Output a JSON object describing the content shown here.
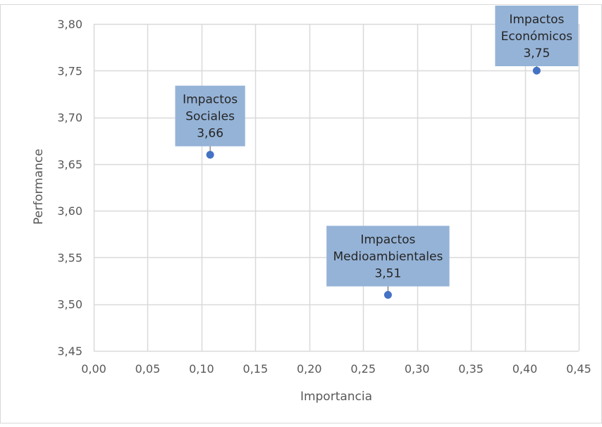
{
  "chart_data": {
    "type": "scatter",
    "title": "",
    "xlabel": "Importancia",
    "ylabel": "Performance",
    "xlim": [
      0.0,
      0.45
    ],
    "ylim": [
      3.45,
      3.8
    ],
    "x_ticks": [
      "0,00",
      "0,05",
      "0,10",
      "0,15",
      "0,20",
      "0,25",
      "0,30",
      "0,35",
      "0,40",
      "0,45"
    ],
    "y_ticks": [
      "3,45",
      "3,50",
      "3,55",
      "3,60",
      "3,65",
      "3,70",
      "3,75",
      "3,80"
    ],
    "grid": true,
    "legend": "none",
    "colors": {
      "marker": "#4472C4",
      "label_fill": "#95B3D7",
      "grid": "#D9D9D9",
      "axis_text": "#595959"
    },
    "points": [
      {
        "x": 0.108,
        "y": 3.66,
        "label_lines": [
          "Impactos",
          "Sociales"
        ],
        "value_label": "3,66"
      },
      {
        "x": 0.273,
        "y": 3.51,
        "label_lines": [
          "Impactos",
          "Medioambientales"
        ],
        "value_label": "3,51"
      },
      {
        "x": 0.411,
        "y": 3.75,
        "label_lines": [
          "Impactos",
          "Económicos"
        ],
        "value_label": "3,75"
      }
    ]
  }
}
